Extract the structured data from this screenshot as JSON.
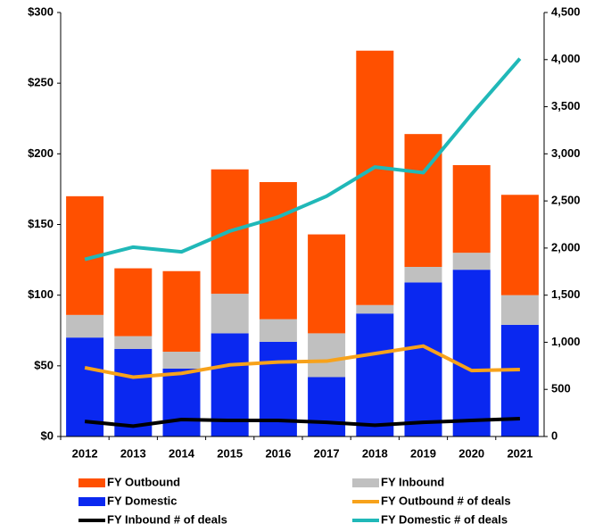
{
  "chart_data": {
    "type": "bar",
    "categories": [
      "2012",
      "2013",
      "2014",
      "2015",
      "2016",
      "2017",
      "2018",
      "2019",
      "2020",
      "2021"
    ],
    "series": [
      {
        "name": "FY Domestic",
        "type": "bar",
        "color": "#0a28f0",
        "values": [
          70,
          62,
          48,
          73,
          67,
          42,
          87,
          109,
          118,
          79
        ]
      },
      {
        "name": "FY Inbound",
        "type": "bar",
        "color": "#c0c0c0",
        "values": [
          16,
          9,
          12,
          28,
          16,
          31,
          6,
          11,
          12,
          21
        ]
      },
      {
        "name": "FY Outbound",
        "type": "bar",
        "color": "#ff5000",
        "values": [
          84,
          48,
          57,
          88,
          97,
          70,
          180,
          94,
          62,
          71
        ]
      },
      {
        "name": "FY Outbound # of deals",
        "type": "line",
        "axis": "y2",
        "color": "#f7a21b",
        "values": [
          730,
          630,
          670,
          760,
          790,
          800,
          880,
          960,
          700,
          710
        ]
      },
      {
        "name": "FY Inbound # of deals",
        "type": "line",
        "axis": "y2",
        "color": "#000000",
        "values": [
          160,
          110,
          180,
          170,
          170,
          150,
          120,
          150,
          170,
          190
        ]
      },
      {
        "name": "FY Domestic # of deals",
        "type": "line",
        "axis": "y2",
        "color": "#20b8b8",
        "values": [
          1880,
          2010,
          1960,
          2180,
          2330,
          2550,
          2860,
          2800,
          3420,
          4010
        ]
      }
    ],
    "legend_order": [
      2,
      1,
      0,
      3,
      4,
      5
    ],
    "ylim": [
      0,
      300
    ],
    "yticks": [
      {
        "value": 0,
        "label": "$0"
      },
      {
        "value": 50,
        "label": "$50"
      },
      {
        "value": 100,
        "label": "$100"
      },
      {
        "value": 150,
        "label": "$150"
      },
      {
        "value": 200,
        "label": "$200"
      },
      {
        "value": 250,
        "label": "$250"
      },
      {
        "value": 300,
        "label": "$300"
      }
    ],
    "y2lim": [
      0,
      4500
    ],
    "y2ticks": [
      0,
      {
        "value": 500,
        "label": "500"
      },
      {
        "value": 1000,
        "label": "1,000"
      },
      {
        "value": 1500,
        "label": "1,500"
      },
      {
        "value": 2000,
        "label": "2,000"
      },
      {
        "value": 2500,
        "label": "2,500"
      },
      {
        "value": 3000,
        "label": "3,000"
      },
      {
        "value": 3500,
        "label": "3,500"
      },
      {
        "value": 4000,
        "label": "4,000"
      },
      {
        "value": 4500,
        "label": "4,500"
      }
    ]
  }
}
